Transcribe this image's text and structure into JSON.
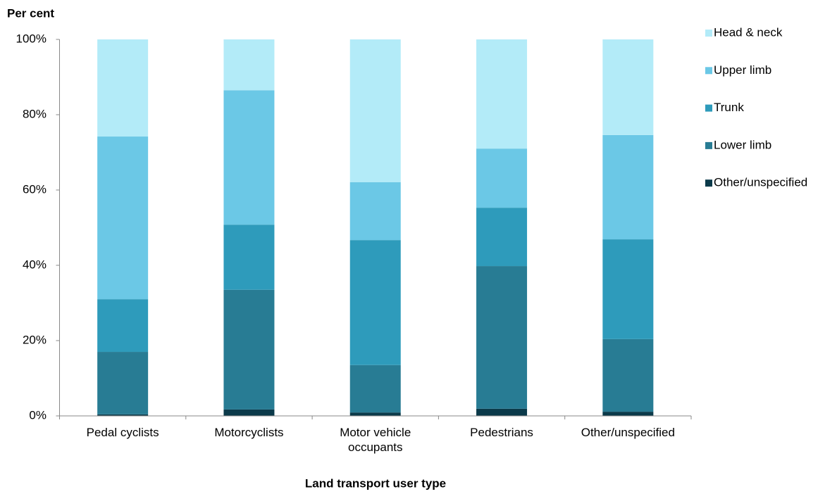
{
  "chart_data": {
    "type": "stacked_bar",
    "y_axis_label": "Per cent",
    "x_axis_label": "Land transport user type",
    "categories": [
      "Pedal cyclists",
      "Motorcyclists",
      "Motor vehicle occupants",
      "Pedestrians",
      "Other/unspecified"
    ],
    "series": [
      {
        "name": "Other/unspecified",
        "color": "#0b3a4a",
        "values": [
          0.4,
          1.7,
          0.9,
          1.9,
          1.1
        ]
      },
      {
        "name": "Lower limb",
        "color": "#287c94",
        "values": [
          16.6,
          31.8,
          12.6,
          37.9,
          19.3
        ]
      },
      {
        "name": "Trunk",
        "color": "#2e9bbb",
        "values": [
          14.0,
          17.3,
          33.2,
          15.5,
          26.5
        ]
      },
      {
        "name": "Upper limb",
        "color": "#6bc8e6",
        "values": [
          43.2,
          35.7,
          15.4,
          15.7,
          27.7
        ]
      },
      {
        "name": "Head & neck",
        "color": "#b3ebf8",
        "values": [
          25.8,
          13.5,
          37.9,
          29.0,
          25.4
        ]
      }
    ],
    "ylim": [
      0,
      100
    ],
    "yticks": [
      {
        "value": 0,
        "label": "0%"
      },
      {
        "value": 20,
        "label": "20%"
      },
      {
        "value": 40,
        "label": "40%"
      },
      {
        "value": 60,
        "label": "60%"
      },
      {
        "value": 80,
        "label": "80%"
      },
      {
        "value": 100,
        "label": "100%"
      }
    ],
    "legend_position": "right"
  }
}
